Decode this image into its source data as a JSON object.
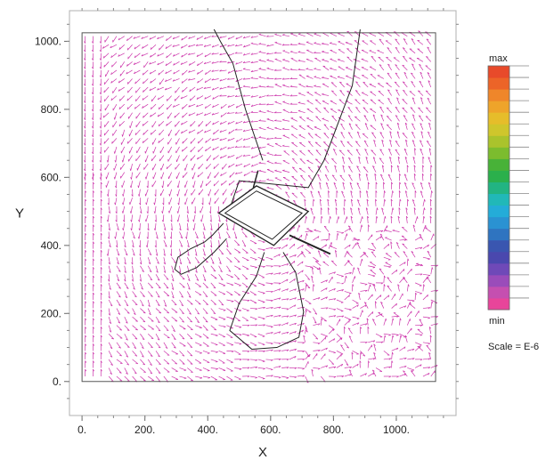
{
  "chart_data": {
    "type": "vector-field",
    "xlabel": "X",
    "ylabel": "Y",
    "xlim": [
      -40,
      1190
    ],
    "ylim": [
      -100,
      1090
    ],
    "x_ticks": [
      0,
      200,
      400,
      600,
      800,
      1000
    ],
    "y_ticks": [
      0,
      200,
      400,
      600,
      800,
      1000
    ],
    "x_tick_labels": [
      "0.",
      "200.",
      "400.",
      "600.",
      "800.",
      "1000."
    ],
    "y_tick_labels": [
      "0.",
      "200.",
      "400.",
      "600.",
      "800.",
      "1000."
    ],
    "domain_bounds": {
      "x": [
        0,
        1125
      ],
      "y": [
        0,
        1025
      ]
    },
    "vector_color": "#cc33aa",
    "grid": false,
    "colorbar": {
      "label_max": "max",
      "label_min": "min",
      "scale_text": "Scale = E-6",
      "colors": [
        "#e8459a",
        "#c54fb0",
        "#9a4cba",
        "#6f49b8",
        "#4a48ae",
        "#3a56b0",
        "#2f74c0",
        "#2a92d2",
        "#24acd8",
        "#21b8b8",
        "#22b482",
        "#2bb04c",
        "#48b238",
        "#7cbc2e",
        "#aac32c",
        "#cfc62c",
        "#e6bd2a",
        "#eea42a",
        "#ef862a",
        "#ec6428",
        "#e84a2a"
      ]
    },
    "flow_lines": [
      {
        "points": [
          [
            450,
            465
          ],
          [
            415,
            430
          ],
          [
            390,
            410
          ],
          [
            345,
            390
          ],
          [
            305,
            365
          ],
          [
            295,
            330
          ],
          [
            315,
            315
          ],
          [
            365,
            335
          ],
          [
            420,
            380
          ],
          [
            460,
            420
          ]
        ]
      },
      {
        "points": [
          [
            460,
            480
          ],
          [
            500,
            590
          ],
          [
            720,
            570
          ],
          [
            770,
            650
          ],
          [
            860,
            870
          ],
          [
            885,
            1035
          ]
        ]
      },
      {
        "points": [
          [
            580,
            380
          ],
          [
            555,
            310
          ],
          [
            500,
            230
          ],
          [
            470,
            150
          ],
          [
            540,
            95
          ],
          [
            620,
            100
          ],
          [
            690,
            130
          ],
          [
            705,
            205
          ],
          [
            680,
            320
          ],
          [
            640,
            380
          ]
        ]
      },
      {
        "points": [
          [
            575,
            650
          ],
          [
            520,
            800
          ],
          [
            480,
            935
          ],
          [
            440,
            1000
          ],
          [
            420,
            1035
          ]
        ]
      }
    ],
    "structure": {
      "outer": [
        [
          435,
          495
        ],
        [
          555,
          575
        ],
        [
          720,
          500
        ],
        [
          610,
          400
        ]
      ],
      "inner": [
        [
          455,
          495
        ],
        [
          555,
          560
        ],
        [
          700,
          495
        ],
        [
          605,
          418
        ]
      ],
      "pipe": [
        [
          660,
          430
        ],
        [
          790,
          375
        ]
      ],
      "pipe2": [
        [
          545,
          570
        ],
        [
          560,
          620
        ]
      ]
    }
  }
}
